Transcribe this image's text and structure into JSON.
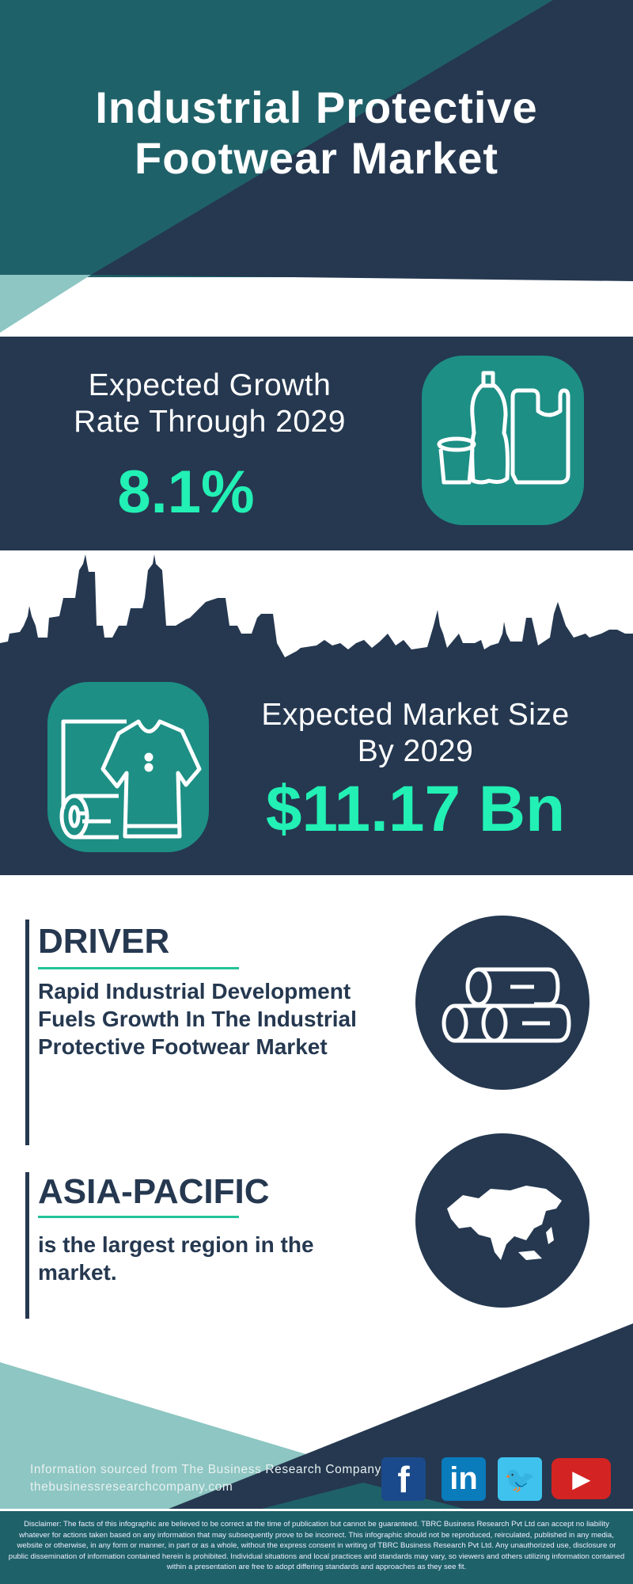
{
  "header": {
    "title_line1": "Industrial Protective",
    "title_line2": "Footwear Market"
  },
  "growth": {
    "label_line1": "Expected Growth",
    "label_line2": "Rate Through 2029",
    "value": "8.1%",
    "icon": "bottle-cup-bag-icon"
  },
  "market_size": {
    "label_line1": "Expected Market Size",
    "label_line2": "By 2029",
    "value": "$11.17 Bn",
    "icon": "shirt-fabric-roll-icon"
  },
  "driver": {
    "heading": "DRIVER",
    "text_lines": [
      "Rapid Industrial Development",
      "Fuels Growth In The Industrial",
      "Protective Footwear Market"
    ],
    "icon": "logs-icon"
  },
  "region": {
    "heading": "ASIA-PACIFIC",
    "text_lines": [
      "is the largest region in the",
      "market."
    ],
    "icon": "asia-map-icon"
  },
  "footer": {
    "source": "Information sourced from The Business Research Company",
    "url": "thebusinessresearchcompany.com",
    "social": [
      {
        "name": "facebook",
        "glyph": "f",
        "color": "#1a4a8b"
      },
      {
        "name": "linkedin",
        "glyph": "in",
        "color": "#0a7bbb"
      },
      {
        "name": "twitter",
        "glyph": "🐦",
        "color": "#3fc3ee"
      },
      {
        "name": "youtube",
        "glyph": "▶",
        "color": "#d42323"
      }
    ],
    "disclaimer": "Disclaimer: The facts of this infographic are believed to be correct at the time of publication but cannot be guaranteed. TBRC Business Research Pvt Ltd can accept no liability whatever for actions taken based on any information that may subsequently prove to be incorrect. This infographic should not be reproduced, reirculated, published in any media, website or otherwise, in any form or manner, in part or as a whole, without the express consent in writing of TBRC Business Research Pvt Ltd. Any unauthorized use, disclosure or public dissemination of information contained herein is prohibited. Individual situations and local practices and standards may vary, so viewers and others utilizing information contained within a presentation are free to adopt differing standards and approaches as they see fit."
  },
  "colors": {
    "navy": "#253850",
    "teal": "#1f6169",
    "mint": "#22f0b4",
    "icon_box": "#1d8f85",
    "light_teal": "#8dc6c2"
  }
}
